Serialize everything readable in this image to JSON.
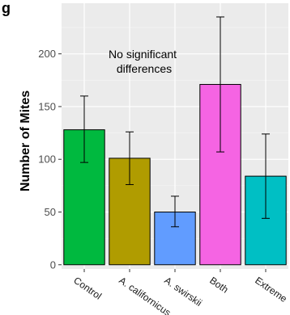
{
  "panel_label": "g",
  "chart_data": {
    "type": "bar",
    "title": "",
    "xlabel": "",
    "ylabel": "Number of Mites",
    "categories": [
      "Control",
      "A. californicus",
      "A. swirskii",
      "Both",
      "Extreme"
    ],
    "values": [
      128,
      101,
      50,
      171,
      84
    ],
    "error_low": [
      97,
      76,
      36,
      107,
      44
    ],
    "error_high": [
      160,
      126,
      65,
      235,
      124
    ],
    "colors": [
      "#00b93f",
      "#b09c00",
      "#619cff",
      "#f564e3",
      "#00bfc4"
    ],
    "ylim": [
      -4,
      248
    ],
    "yticks": [
      0,
      50,
      100,
      150,
      200
    ],
    "grid": true,
    "legend": "none",
    "annotation": [
      "No significant",
      "differences"
    ]
  }
}
